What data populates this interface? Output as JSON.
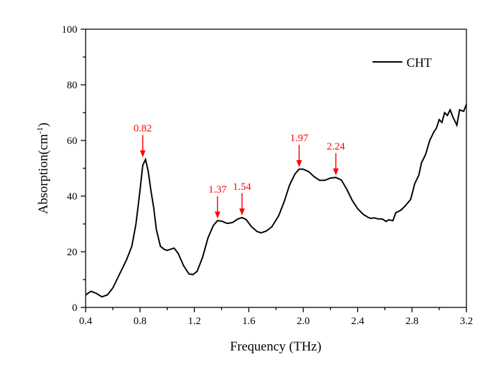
{
  "chart_data": {
    "type": "line",
    "xlabel": "Frequency (THz)",
    "ylabel": "Absorption(cm",
    "ylabel_sup": "-1",
    "ylabel_close": ")",
    "xlim": [
      0.4,
      3.2
    ],
    "ylim": [
      0,
      100
    ],
    "xticks": [
      "0.4",
      "0.8",
      "1.2",
      "1.6",
      "2.0",
      "2.4",
      "2.8",
      "3.2"
    ],
    "yticks": [
      "0",
      "20",
      "40",
      "60",
      "80",
      "100"
    ],
    "grid": false,
    "legend_position": "top-right",
    "series": [
      {
        "name": "CHT",
        "color": "#000000",
        "x": [
          0.4,
          0.44,
          0.48,
          0.52,
          0.56,
          0.6,
          0.65,
          0.7,
          0.74,
          0.77,
          0.8,
          0.82,
          0.84,
          0.86,
          0.88,
          0.9,
          0.92,
          0.95,
          0.98,
          1.0,
          1.05,
          1.08,
          1.12,
          1.16,
          1.19,
          1.22,
          1.26,
          1.3,
          1.34,
          1.37,
          1.4,
          1.44,
          1.48,
          1.52,
          1.55,
          1.58,
          1.62,
          1.66,
          1.69,
          1.73,
          1.77,
          1.82,
          1.86,
          1.9,
          1.94,
          1.97,
          2.0,
          2.04,
          2.08,
          2.12,
          2.16,
          2.2,
          2.24,
          2.28,
          2.32,
          2.36,
          2.4,
          2.44,
          2.48,
          2.5,
          2.52,
          2.55,
          2.58,
          2.61,
          2.63,
          2.66,
          2.68,
          2.72,
          2.75,
          2.79,
          2.82,
          2.85,
          2.87,
          2.9,
          2.93,
          2.96,
          2.98,
          3.0,
          3.02,
          3.04,
          3.06,
          3.08,
          3.1,
          3.13,
          3.15,
          3.18,
          3.2
        ],
        "y": [
          4.5,
          5.8,
          5.0,
          3.8,
          4.5,
          7,
          12,
          17,
          22,
          30,
          42,
          51,
          53.2,
          49,
          42,
          36,
          28,
          22,
          20.8,
          20.5,
          21.3,
          19.5,
          15,
          12,
          11.8,
          13,
          18,
          25,
          29.5,
          31.2,
          31,
          30.2,
          30.5,
          31.8,
          32.3,
          31.6,
          29,
          27.3,
          26.8,
          27.5,
          29,
          33,
          38,
          44,
          48,
          49.7,
          49.7,
          48.8,
          47,
          45.7,
          45.7,
          46.5,
          46.7,
          45.8,
          42.5,
          38.5,
          35.5,
          33.5,
          32.3,
          32,
          32.2,
          31.8,
          31.8,
          30.9,
          31.5,
          31.2,
          34,
          35,
          36.5,
          38.8,
          44.5,
          47.5,
          52,
          55,
          60,
          63,
          64.5,
          67.5,
          66.5,
          70,
          69,
          71,
          68.5,
          65.5,
          71,
          70.5,
          73
        ]
      }
    ],
    "annotations": [
      {
        "text": "0.82",
        "x": 0.82,
        "y": 53.2
      },
      {
        "text": "1.37",
        "x": 1.37,
        "y": 31.2
      },
      {
        "text": "1.54",
        "x": 1.55,
        "y": 32.3
      },
      {
        "text": "1.97",
        "x": 1.97,
        "y": 49.7
      },
      {
        "text": "2.24",
        "x": 2.24,
        "y": 46.7
      }
    ],
    "annotation_color": "#ff0000"
  }
}
